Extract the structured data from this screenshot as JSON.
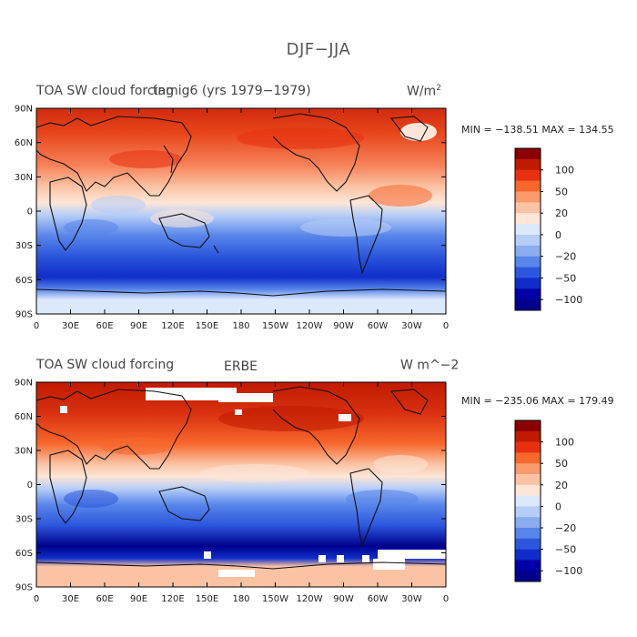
{
  "main_title": "DJF−JJA",
  "panels": [
    {
      "left_title": "TOA SW cloud forcing",
      "center_title": "tamig6 (yrs 1979−1979)",
      "units_base": "W/m",
      "units_sup": "2",
      "minmax": "MIN = −138.51 MAX = 134.55"
    },
    {
      "left_title": "TOA SW cloud forcing",
      "center_title": "ERBE",
      "units_base": "W m^−2",
      "units_sup": "",
      "minmax": "MIN = −235.06 MAX = 179.49"
    }
  ],
  "lat_labels": [
    "90N",
    "60N",
    "30N",
    "0",
    "30S",
    "60S",
    "90S"
  ],
  "lon_labels": [
    "0",
    "30E",
    "60E",
    "90E",
    "120E",
    "150E",
    "180",
    "150W",
    "120W",
    "90W",
    "60W",
    "30W",
    "0"
  ],
  "colorbar": {
    "labels": [
      "100",
      "50",
      "20",
      "0",
      "−20",
      "−50",
      "−100"
    ],
    "colors": [
      "#8b0000",
      "#c01a00",
      "#e83010",
      "#f8672c",
      "#fa9a6a",
      "#fbc3a4",
      "#fde6d8",
      "#dce9fa",
      "#b6cdf7",
      "#8aadf0",
      "#5885ea",
      "#2c56dd",
      "#0f2ec9",
      "#0000a6",
      "#00008b"
    ]
  }
}
